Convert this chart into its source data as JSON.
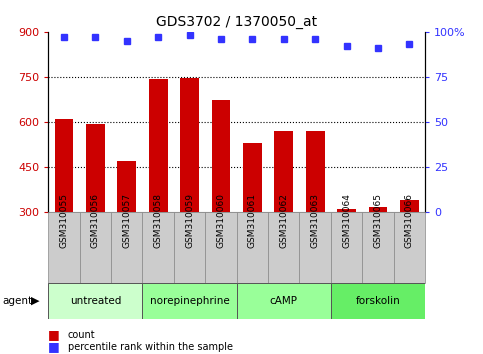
{
  "title": "GDS3702 / 1370050_at",
  "samples": [
    "GSM310055",
    "GSM310056",
    "GSM310057",
    "GSM310058",
    "GSM310059",
    "GSM310060",
    "GSM310061",
    "GSM310062",
    "GSM310063",
    "GSM310064",
    "GSM310065",
    "GSM310066"
  ],
  "bar_values": [
    610,
    595,
    470,
    742,
    748,
    675,
    530,
    572,
    572,
    310,
    318,
    340
  ],
  "percentile_values": [
    97,
    97,
    95,
    97,
    98,
    96,
    96,
    96,
    96,
    92,
    91,
    93
  ],
  "bar_color": "#CC0000",
  "dot_color": "#3333FF",
  "ylim_left": [
    300,
    900
  ],
  "ylim_right": [
    0,
    100
  ],
  "yticks_left": [
    300,
    450,
    600,
    750,
    900
  ],
  "yticks_right": [
    0,
    25,
    50,
    75,
    100
  ],
  "grid_values": [
    450,
    600,
    750
  ],
  "agents": [
    {
      "label": "untreated",
      "start": 0,
      "end": 3,
      "color": "#ccffcc"
    },
    {
      "label": "norepinephrine",
      "start": 3,
      "end": 6,
      "color": "#99ff99"
    },
    {
      "label": "cAMP",
      "start": 6,
      "end": 9,
      "color": "#99ff99"
    },
    {
      "label": "forskolin",
      "start": 9,
      "end": 12,
      "color": "#66ee66"
    }
  ],
  "legend_items": [
    {
      "color": "#CC0000",
      "label": "count"
    },
    {
      "color": "#3333FF",
      "label": "percentile rank within the sample"
    }
  ],
  "tick_label_color_left": "#CC0000",
  "tick_label_color_right": "#3333FF",
  "bar_bottom": 300,
  "background_color": "#ffffff",
  "sample_box_color": "#cccccc",
  "sample_box_edge": "#888888"
}
